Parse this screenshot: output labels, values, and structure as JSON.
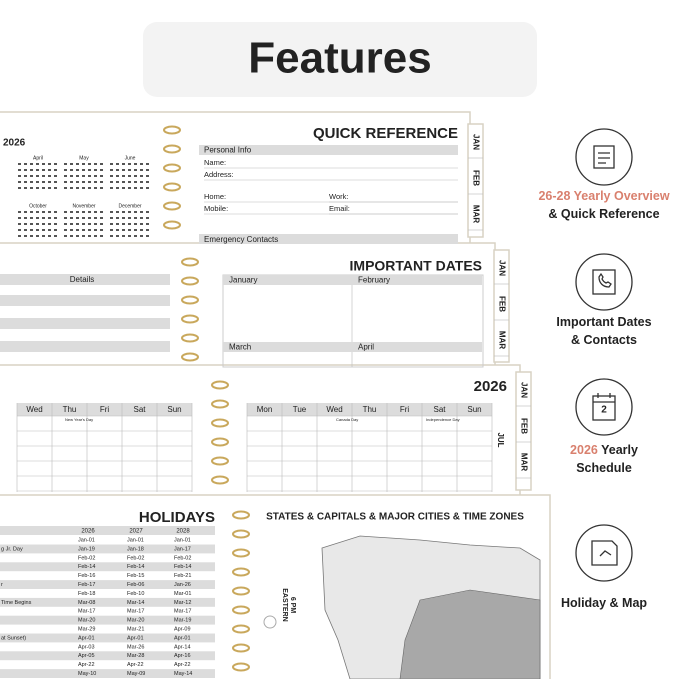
{
  "header": {
    "title": "Features"
  },
  "features": [
    {
      "lines": [
        [
          {
            "text": "26-28 Yearly Overview",
            "accent": true
          }
        ],
        [
          {
            "text": "& Quick Reference",
            "accent": false
          }
        ]
      ]
    },
    {
      "lines": [
        [
          {
            "text": "Important Dates",
            "accent": false
          }
        ],
        [
          {
            "text": "& Contacts",
            "accent": false
          }
        ]
      ]
    },
    {
      "lines": [
        [
          {
            "text": "2026",
            "accent": true
          },
          {
            "text": " Yearly",
            "accent": false
          }
        ],
        [
          {
            "text": "Schedule",
            "accent": false
          }
        ]
      ]
    },
    {
      "lines": [
        [
          {
            "text": "Holiday & Map",
            "accent": false
          }
        ]
      ]
    }
  ],
  "accent_color": "#d9806e",
  "icon_labels": {
    "calendar_day": "2"
  },
  "pages": {
    "quick_reference": {
      "year": "2026",
      "months": [
        "April",
        "May",
        "June",
        "October",
        "November",
        "December"
      ],
      "title": "QUICK REFERENCE",
      "section": "Personal Info",
      "fields": [
        "Name:",
        "Address:",
        "Home:",
        "Work:",
        "Mobile:",
        "Email:"
      ],
      "section2": "Emergency Contacts",
      "tabs": [
        "JAN",
        "FEB",
        "MAR"
      ]
    },
    "important_dates": {
      "details": "Details",
      "title": "IMPORTANT DATES",
      "months": [
        "January",
        "February",
        "March",
        "April"
      ],
      "tabs": [
        "JAN",
        "FEB",
        "MAR"
      ]
    },
    "calendar": {
      "year": "2026",
      "left_days": [
        "Wed",
        "Thu",
        "Fri",
        "Sat",
        "Sun"
      ],
      "right_days": [
        "Mon",
        "Tue",
        "Wed",
        "Thu",
        "Fri",
        "Sat",
        "Sun"
      ],
      "left_notes": [
        "New Year's Day"
      ],
      "right_notes": [
        "Canada Day",
        "Independence Day"
      ],
      "side_tab": "JUL",
      "tabs": [
        "JAN",
        "FEB",
        "MAR"
      ]
    },
    "holidays": {
      "title": "HOLIDAYS",
      "years": [
        "2026",
        "2027",
        "2028"
      ],
      "row_labels": [
        null,
        "g Jr. Day",
        null,
        null,
        null,
        "r",
        null,
        "Time Begins",
        null,
        null,
        null,
        "at Sunset)",
        null,
        null,
        null,
        null
      ],
      "dates": [
        [
          "Jan-01",
          "Jan-01",
          "Jan-01"
        ],
        [
          "Jan-19",
          "Jan-18",
          "Jan-17"
        ],
        [
          "Feb-02",
          "Feb-02",
          "Feb-02"
        ],
        [
          "Feb-14",
          "Feb-14",
          "Feb-14"
        ],
        [
          "Feb-16",
          "Feb-15",
          "Feb-21"
        ],
        [
          "Feb-17",
          "Feb-06",
          "Jan-26"
        ],
        [
          "Feb-18",
          "Feb-10",
          "Mar-01"
        ],
        [
          "Mar-08",
          "Mar-14",
          "Mar-12"
        ],
        [
          "Mar-17",
          "Mar-17",
          "Mar-17"
        ],
        [
          "Mar-20",
          "Mar-20",
          "Mar-19"
        ],
        [
          "Mar-29",
          "Mar-21",
          "Apr-09"
        ],
        [
          "Apr-01",
          "Apr-01",
          "Apr-01"
        ],
        [
          "Apr-03",
          "Mar-26",
          "Apr-14"
        ],
        [
          "Apr-05",
          "Mar-28",
          "Apr-16"
        ],
        [
          "Apr-22",
          "Apr-22",
          "Apr-22"
        ],
        [
          "May-10",
          "May-09",
          "May-14"
        ]
      ],
      "map_title": "STATES & CAPITALS & MAJOR CITIES & TIME ZONES",
      "zone": "EASTERN",
      "zone_time": "6 PM"
    }
  }
}
